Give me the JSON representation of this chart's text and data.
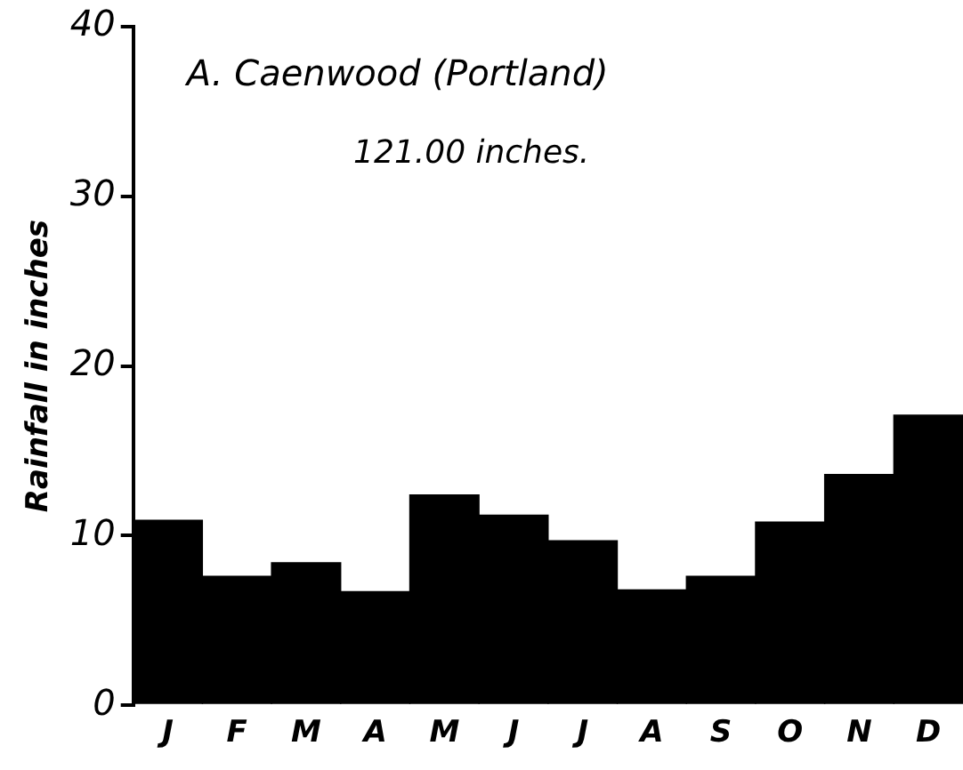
{
  "chart_data": {
    "type": "bar",
    "title": "A. Caenwood (Portland)",
    "subtitle": "121.00 inches.",
    "ylabel": "Rainfall in inches",
    "categories": [
      "J",
      "F",
      "M",
      "A",
      "M",
      "J",
      "J",
      "A",
      "S",
      "O",
      "N",
      "D"
    ],
    "values": [
      10.9,
      7.6,
      8.4,
      6.7,
      12.4,
      11.2,
      9.7,
      6.8,
      7.6,
      10.8,
      13.6,
      17.1
    ],
    "color": "#000000",
    "ylim": [
      0,
      40
    ],
    "yticks": [
      0,
      10,
      20,
      30,
      40
    ],
    "grid": false,
    "legend": false
  }
}
